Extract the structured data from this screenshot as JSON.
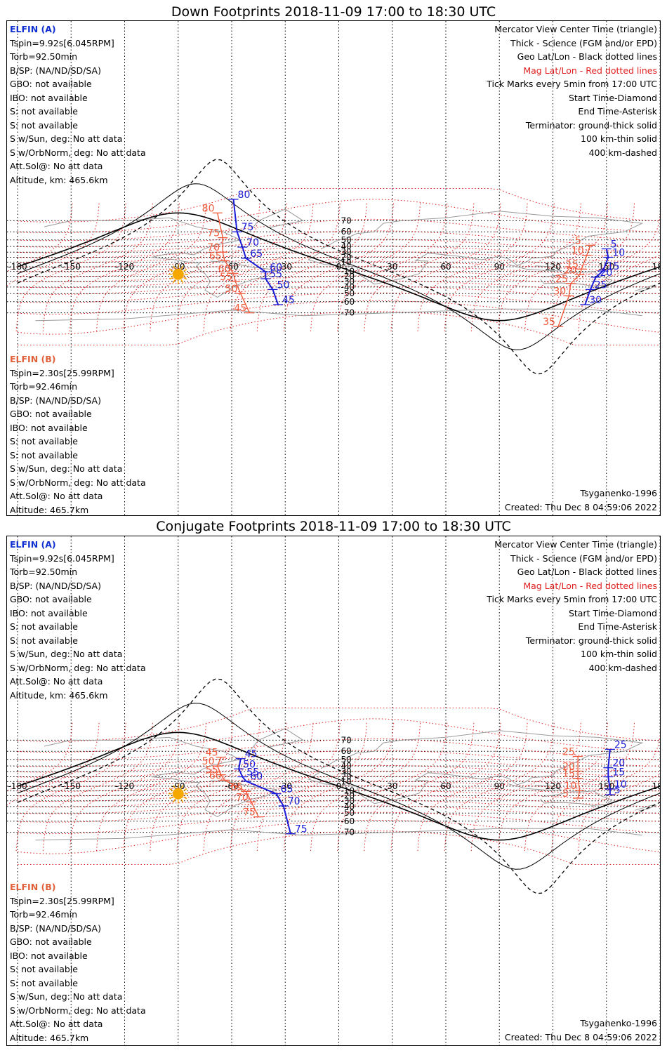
{
  "panels": [
    {
      "title": "Down Footprints 2018-11-09 17:00 to 18:30 UTC",
      "info_a": [
        "ELFIN (A)",
        "Tspin=9.92s[6.045RPM]",
        "Torb=92.50min",
        "B/SP: (NA/ND/SD/SA)",
        "GBO: not available",
        "IBO: not available",
        "S: not available",
        "S: not available",
        "S w/Sun, deg: No att data",
        "S w/OrbNorm, deg: No att data",
        "Att.Sol@: No att data",
        "Altitude, km: 465.6km"
      ],
      "info_b": [
        "ELFIN (B)",
        "Tspin=2.30s[25.99RPM]",
        "Torb=92.46min",
        "B/SP: (NA/ND/SD/SA)",
        "GBO: not available",
        "IBO: not available",
        "S: not available",
        "S: not available",
        "S w/Sun, deg: No att data",
        "S w/OrbNorm, deg: No att data",
        "Att.Sol@: No att data",
        "Altitude: 465.7km"
      ],
      "footer_right": [
        "Tsyganenko-1996",
        "Created: Thu Dec  8 04:59:06 2022"
      ],
      "track_a_labels": [
        {
          "t": "80",
          "lon": -59,
          "lat": 81
        },
        {
          "t": "75",
          "lon": -57,
          "lat": 60
        },
        {
          "t": "70",
          "lon": -54,
          "lat": 39
        },
        {
          "t": "65",
          "lon": -52,
          "lat": 18
        },
        {
          "t": "60",
          "lon": -41,
          "lat": -11
        },
        {
          "t": "55",
          "lon": -41,
          "lat": -25
        },
        {
          "t": "50",
          "lon": -37,
          "lat": -44
        },
        {
          "t": "45",
          "lon": -34,
          "lat": -63
        },
        {
          "t": "5",
          "lon": 150,
          "lat": 36
        },
        {
          "t": "10",
          "lon": 151,
          "lat": 20
        },
        {
          "t": "15",
          "lon": 148,
          "lat": -9
        },
        {
          "t": "20",
          "lon": 144,
          "lat": -22
        },
        {
          "t": "25",
          "lon": 141,
          "lat": -44
        },
        {
          "t": "30",
          "lon": 138,
          "lat": -63
        }
      ],
      "track_b_labels": [
        {
          "t": "80",
          "lon": -68,
          "lat": 75
        },
        {
          "t": "75",
          "lon": -65,
          "lat": 53
        },
        {
          "t": "70",
          "lon": -65,
          "lat": 30
        },
        {
          "t": "65",
          "lon": -64,
          "lat": 13
        },
        {
          "t": "60",
          "lon": -59,
          "lat": -14
        },
        {
          "t": "55",
          "lon": -58,
          "lat": -30
        },
        {
          "t": "50",
          "lon": -55,
          "lat": -50
        },
        {
          "t": "45",
          "lon": -50,
          "lat": -70
        },
        {
          "t": "5",
          "lon": 141,
          "lat": 42
        },
        {
          "t": "10",
          "lon": 139,
          "lat": 24
        },
        {
          "t": "15",
          "lon": 136,
          "lat": -5
        },
        {
          "t": "20",
          "lon": 135,
          "lat": -17
        },
        {
          "t": "25",
          "lon": 130,
          "lat": -34
        },
        {
          "t": "30",
          "lon": 129,
          "lat": -53
        },
        {
          "t": "35",
          "lon": 123,
          "lat": -78
        }
      ]
    },
    {
      "title": "Conjugate Footprints 2018-11-09 17:00 to 18:30 UTC",
      "info_a": [
        "ELFIN (A)",
        "Tspin=9.92s[6.045RPM]",
        "Torb=92.50min",
        "B/SP: (NA/ND/SD/SA)",
        "GBO: not available",
        "IBO: not available",
        "S: not available",
        "S: not available",
        "S w/Sun, deg: No att data",
        "S w/OrbNorm, deg: No att data",
        "Att.Sol@: No att data",
        "Altitude, km: 465.6km"
      ],
      "info_b": [
        "ELFIN (B)",
        "Tspin=2.30s[25.99RPM]",
        "Torb=92.46min",
        "B/SP: (NA/ND/SD/SA)",
        "GBO: not available",
        "IBO: not available",
        "S: not available",
        "S: not available",
        "S w/Sun, deg: No att data",
        "S w/OrbNorm, deg: No att data",
        "Att.Sol@: No att data",
        "Altitude: 465.7km"
      ],
      "footer_right": [
        "Tsyganenko-1996",
        "Created: Thu Dec  8 04:59:06 2022"
      ],
      "track_a_labels": [
        {
          "t": "45",
          "lon": -55,
          "lat": 51
        },
        {
          "t": "50",
          "lon": -56,
          "lat": 35
        },
        {
          "t": "55",
          "lon": -54,
          "lat": 20
        },
        {
          "t": "60",
          "lon": -52,
          "lat": 11
        },
        {
          "t": "65",
          "lon": -35,
          "lat": -16
        },
        {
          "t": "70",
          "lon": -31,
          "lat": -39
        },
        {
          "t": "75",
          "lon": -27,
          "lat": -71
        },
        {
          "t": "5",
          "lon": 152,
          "lat": -18
        },
        {
          "t": "10",
          "lon": 152,
          "lat": -6
        },
        {
          "t": "15",
          "lon": 151,
          "lat": 20
        },
        {
          "t": "20",
          "lon": 151,
          "lat": 37
        },
        {
          "t": "25",
          "lon": 152,
          "lat": 62
        }
      ],
      "track_b_labels": [
        {
          "t": "45",
          "lon": -66,
          "lat": 53
        },
        {
          "t": "50",
          "lon": -68,
          "lat": 40
        },
        {
          "t": "55",
          "lon": -66,
          "lat": 24
        },
        {
          "t": "60",
          "lon": -64,
          "lat": 13
        },
        {
          "t": "65",
          "lon": -52,
          "lat": -11
        },
        {
          "t": "70",
          "lon": -49,
          "lat": -32
        },
        {
          "t": "75",
          "lon": -45,
          "lat": -55
        },
        {
          "t": "5",
          "lon": 134,
          "lat": -25
        },
        {
          "t": "10",
          "lon": 135,
          "lat": -9
        },
        {
          "t": "15",
          "lon": 134,
          "lat": 17
        },
        {
          "t": "20",
          "lon": 134,
          "lat": 31
        },
        {
          "t": "25",
          "lon": 134,
          "lat": 54
        }
      ]
    }
  ],
  "legend": [
    "Mercator View Center Time (triangle)",
    "Thick - Science (FGM and/or EPD)",
    "Geo Lat/Lon - Black dotted lines",
    "Mag Lat/Lon - Red dotted lines",
    "Tick Marks every 5min from 17:00 UTC",
    "Start Time-Diamond",
    "End Time-Asterisk",
    "Terminator: ground-thick solid",
    "100 km-thin solid",
    "400 km-dashed"
  ],
  "lon_ticks": [
    "-180",
    "-150",
    "-120",
    "-90",
    "-60",
    "-30",
    "0",
    "30",
    "60",
    "90",
    "120",
    "150",
    "180"
  ],
  "lat_ticks": [
    "70",
    "60",
    "50",
    "40",
    "30",
    "20",
    "10",
    "-10",
    "-20",
    "-30",
    "-40",
    "-50",
    "-60",
    "-70"
  ],
  "colors": {
    "elfin_a": "#1a1ad6",
    "elfin_b": "#f05a3a",
    "mag_grid": "#e02020",
    "geo_grid": "#000000",
    "sun": "#f5a800",
    "coast": "#9a9a9a"
  }
}
